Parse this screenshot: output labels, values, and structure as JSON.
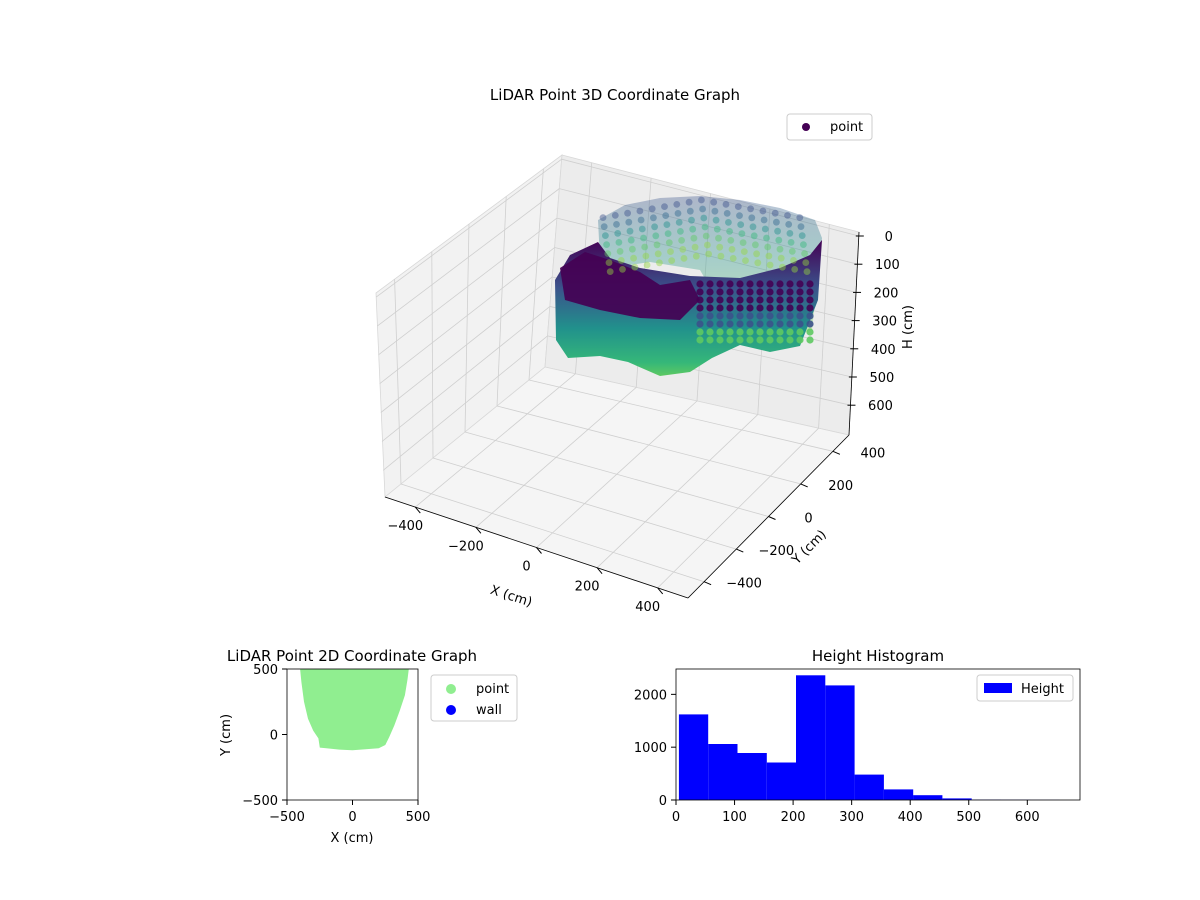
{
  "chart_data": [
    {
      "type": "scatter",
      "title": "LiDAR Point 3D Coordinate Graph",
      "xlabel": "X (cm)",
      "ylabel": "Y (cm)",
      "zlabel": "H (cm)",
      "legend": {
        "entries": [
          "point"
        ],
        "placement": "top-right",
        "colors": [
          "#440154"
        ]
      },
      "xticks": [
        "−400",
        "−200",
        "0",
        "200",
        "400"
      ],
      "yticks": [
        "−400",
        "−200",
        "0",
        "200",
        "400"
      ],
      "zticks": [
        "0",
        "100",
        "200",
        "300",
        "400",
        "500",
        "600"
      ],
      "xlim": [
        -500,
        500
      ],
      "ylim": [
        -500,
        500
      ],
      "zlim": [
        0,
        690
      ],
      "z_axis_inverted": true,
      "colormap": "viridis",
      "series": [
        {
          "name": "point",
          "description_points": [
            {
              "x": -300,
              "y": 400,
              "h": 150
            },
            {
              "x": -200,
              "y": 420,
              "h": 140
            },
            {
              "x": -100,
              "y": 430,
              "h": 130
            },
            {
              "x": 0,
              "y": 440,
              "h": 120
            },
            {
              "x": 100,
              "y": 430,
              "h": 120
            },
            {
              "x": 200,
              "y": 420,
              "h": 130
            },
            {
              "x": 300,
              "y": 400,
              "h": 140
            },
            {
              "x": 400,
              "y": 350,
              "h": 150
            },
            {
              "x": 420,
              "y": 200,
              "h": 160
            },
            {
              "x": 430,
              "y": 0,
              "h": 170
            },
            {
              "x": 420,
              "y": -100,
              "h": 180
            },
            {
              "x": -350,
              "y": 250,
              "h": 160
            },
            {
              "x": -380,
              "y": 100,
              "h": 170
            },
            {
              "x": -350,
              "y": -80,
              "h": 180
            },
            {
              "x": -200,
              "y": -110,
              "h": 220
            },
            {
              "x": 0,
              "y": -120,
              "h": 230
            },
            {
              "x": 150,
              "y": -100,
              "h": 220
            },
            {
              "x": 300,
              "y": -90,
              "h": 200
            }
          ]
        }
      ]
    },
    {
      "type": "scatter",
      "title": "LiDAR Point 2D Coordinate Graph",
      "xlabel": "X (cm)",
      "ylabel": "Y (cm)",
      "xticks": [
        "−500",
        "0",
        "500"
      ],
      "yticks": [
        "500",
        "0",
        "−500"
      ],
      "xlim": [
        -500,
        500
      ],
      "ylim": [
        -500,
        500
      ],
      "legend": {
        "entries": [
          "point",
          "wall"
        ],
        "placement": "outside-right",
        "colors": [
          "#90ee90",
          "#0000ff"
        ]
      },
      "series": [
        {
          "name": "point",
          "color": "#90ee90",
          "outline": [
            [
              -400,
              500
            ],
            [
              -390,
              400
            ],
            [
              -370,
              250
            ],
            [
              -340,
              120
            ],
            [
              -300,
              30
            ],
            [
              -260,
              -30
            ],
            [
              -250,
              -100
            ],
            [
              -200,
              -105
            ],
            [
              -100,
              -115
            ],
            [
              0,
              -120
            ],
            [
              100,
              -112
            ],
            [
              200,
              -105
            ],
            [
              250,
              -80
            ],
            [
              280,
              -20
            ],
            [
              320,
              70
            ],
            [
              360,
              180
            ],
            [
              400,
              300
            ],
            [
              420,
              420
            ],
            [
              430,
              500
            ]
          ]
        },
        {
          "name": "wall",
          "color": "#0000ff",
          "points": []
        }
      ]
    },
    {
      "type": "bar",
      "title": "Height Histogram",
      "xlabel": "",
      "ylabel": "",
      "xticks": [
        "0",
        "100",
        "200",
        "300",
        "400",
        "500",
        "600"
      ],
      "yticks": [
        "0",
        "1000",
        "2000"
      ],
      "xlim": [
        0,
        690
      ],
      "ylim": [
        0,
        2480
      ],
      "legend": {
        "entries": [
          "Height"
        ],
        "placement": "top-right",
        "colors": [
          "#0000ff"
        ]
      },
      "bin_edges": [
        5,
        55,
        105,
        155,
        205,
        255,
        305,
        355,
        405,
        455,
        505,
        555,
        605,
        655
      ],
      "series": [
        {
          "name": "Height",
          "color": "#0000ff",
          "values": [
            1620,
            1060,
            890,
            710,
            2360,
            2170,
            480,
            200,
            90,
            30,
            5,
            3,
            2
          ]
        }
      ]
    }
  ]
}
